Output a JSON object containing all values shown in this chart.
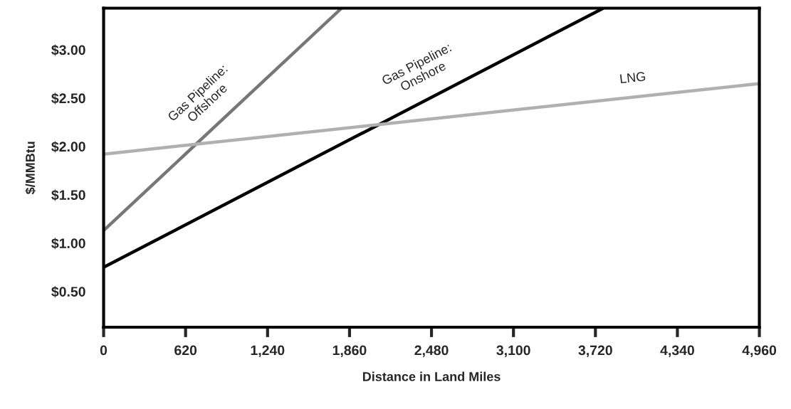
{
  "chart_data": {
    "type": "line",
    "xlabel": "Distance in Land Miles",
    "ylabel": "$/MMBtu",
    "series": [
      {
        "name": "Gas Pipeline:\nOffshore",
        "color": "#777777",
        "x": [
          0,
          1800
        ],
        "values": [
          1.13,
          3.43
        ]
      },
      {
        "name": "Gas Pipeline:\nOnshore",
        "color": "#000000",
        "x": [
          0,
          3780
        ],
        "values": [
          0.75,
          3.43
        ]
      },
      {
        "name": "LNG",
        "color": "#b0b0b0",
        "x": [
          0,
          4960
        ],
        "values": [
          1.92,
          2.65
        ]
      }
    ],
    "xlim": [
      0,
      4960
    ],
    "ylim": [
      0.13,
      3.43
    ],
    "xticks": [
      0,
      {
        "value": 620,
        "label": "620"
      },
      {
        "value": 1240,
        "label": "1,240"
      },
      {
        "value": 1860,
        "label": "1,860"
      },
      {
        "value": 2480,
        "label": "2,480"
      },
      {
        "value": 3100,
        "label": "3,100"
      },
      {
        "value": 3720,
        "label": "3,720"
      },
      {
        "value": 4340,
        "label": "4,340"
      },
      {
        "value": 4960,
        "label": "4,960"
      }
    ],
    "yticks": [
      {
        "value": 0.5,
        "label": "$0.50"
      },
      {
        "value": 1.0,
        "label": "$1.00"
      },
      {
        "value": 1.5,
        "label": "$1.50"
      },
      {
        "value": 2.0,
        "label": "$2.00"
      },
      {
        "value": 2.5,
        "label": "$2.50"
      },
      {
        "value": 3.0,
        "label": "$3.00"
      }
    ],
    "grid": false,
    "legend": false,
    "marker": "none",
    "line_style": "solid"
  }
}
